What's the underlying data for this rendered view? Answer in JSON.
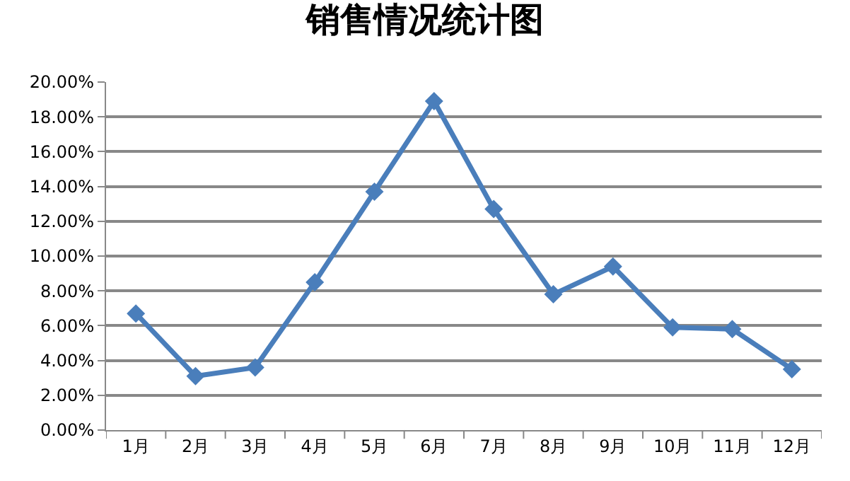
{
  "chart_data": {
    "type": "line",
    "title": "销售情况统计图",
    "categories": [
      "1月",
      "2月",
      "3月",
      "4月",
      "5月",
      "6月",
      "7月",
      "8月",
      "9月",
      "10月",
      "11月",
      "12月"
    ],
    "series": [
      {
        "color": "#4a7ebb",
        "values": [
          6.7,
          3.1,
          3.6,
          8.5,
          13.7,
          18.9,
          12.7,
          7.8,
          9.4,
          5.9,
          5.8,
          3.5
        ]
      }
    ],
    "ylim": [
      0,
      20
    ],
    "yticks": [
      {
        "value": 0,
        "label": "0.00%"
      },
      {
        "value": 2,
        "label": "2.00%"
      },
      {
        "value": 4,
        "label": "4.00%"
      },
      {
        "value": 6,
        "label": "6.00%"
      },
      {
        "value": 8,
        "label": "8.00%"
      },
      {
        "value": 10,
        "label": "10.00%"
      },
      {
        "value": 12,
        "label": "12.00%"
      },
      {
        "value": 14,
        "label": "14.00%"
      },
      {
        "value": 16,
        "label": "16.00%"
      },
      {
        "value": 18,
        "label": "18.00%"
      },
      {
        "value": 20,
        "label": "20.00%"
      }
    ],
    "grid": "y",
    "legend": false,
    "marker": "diamond",
    "line_style": "solid"
  }
}
